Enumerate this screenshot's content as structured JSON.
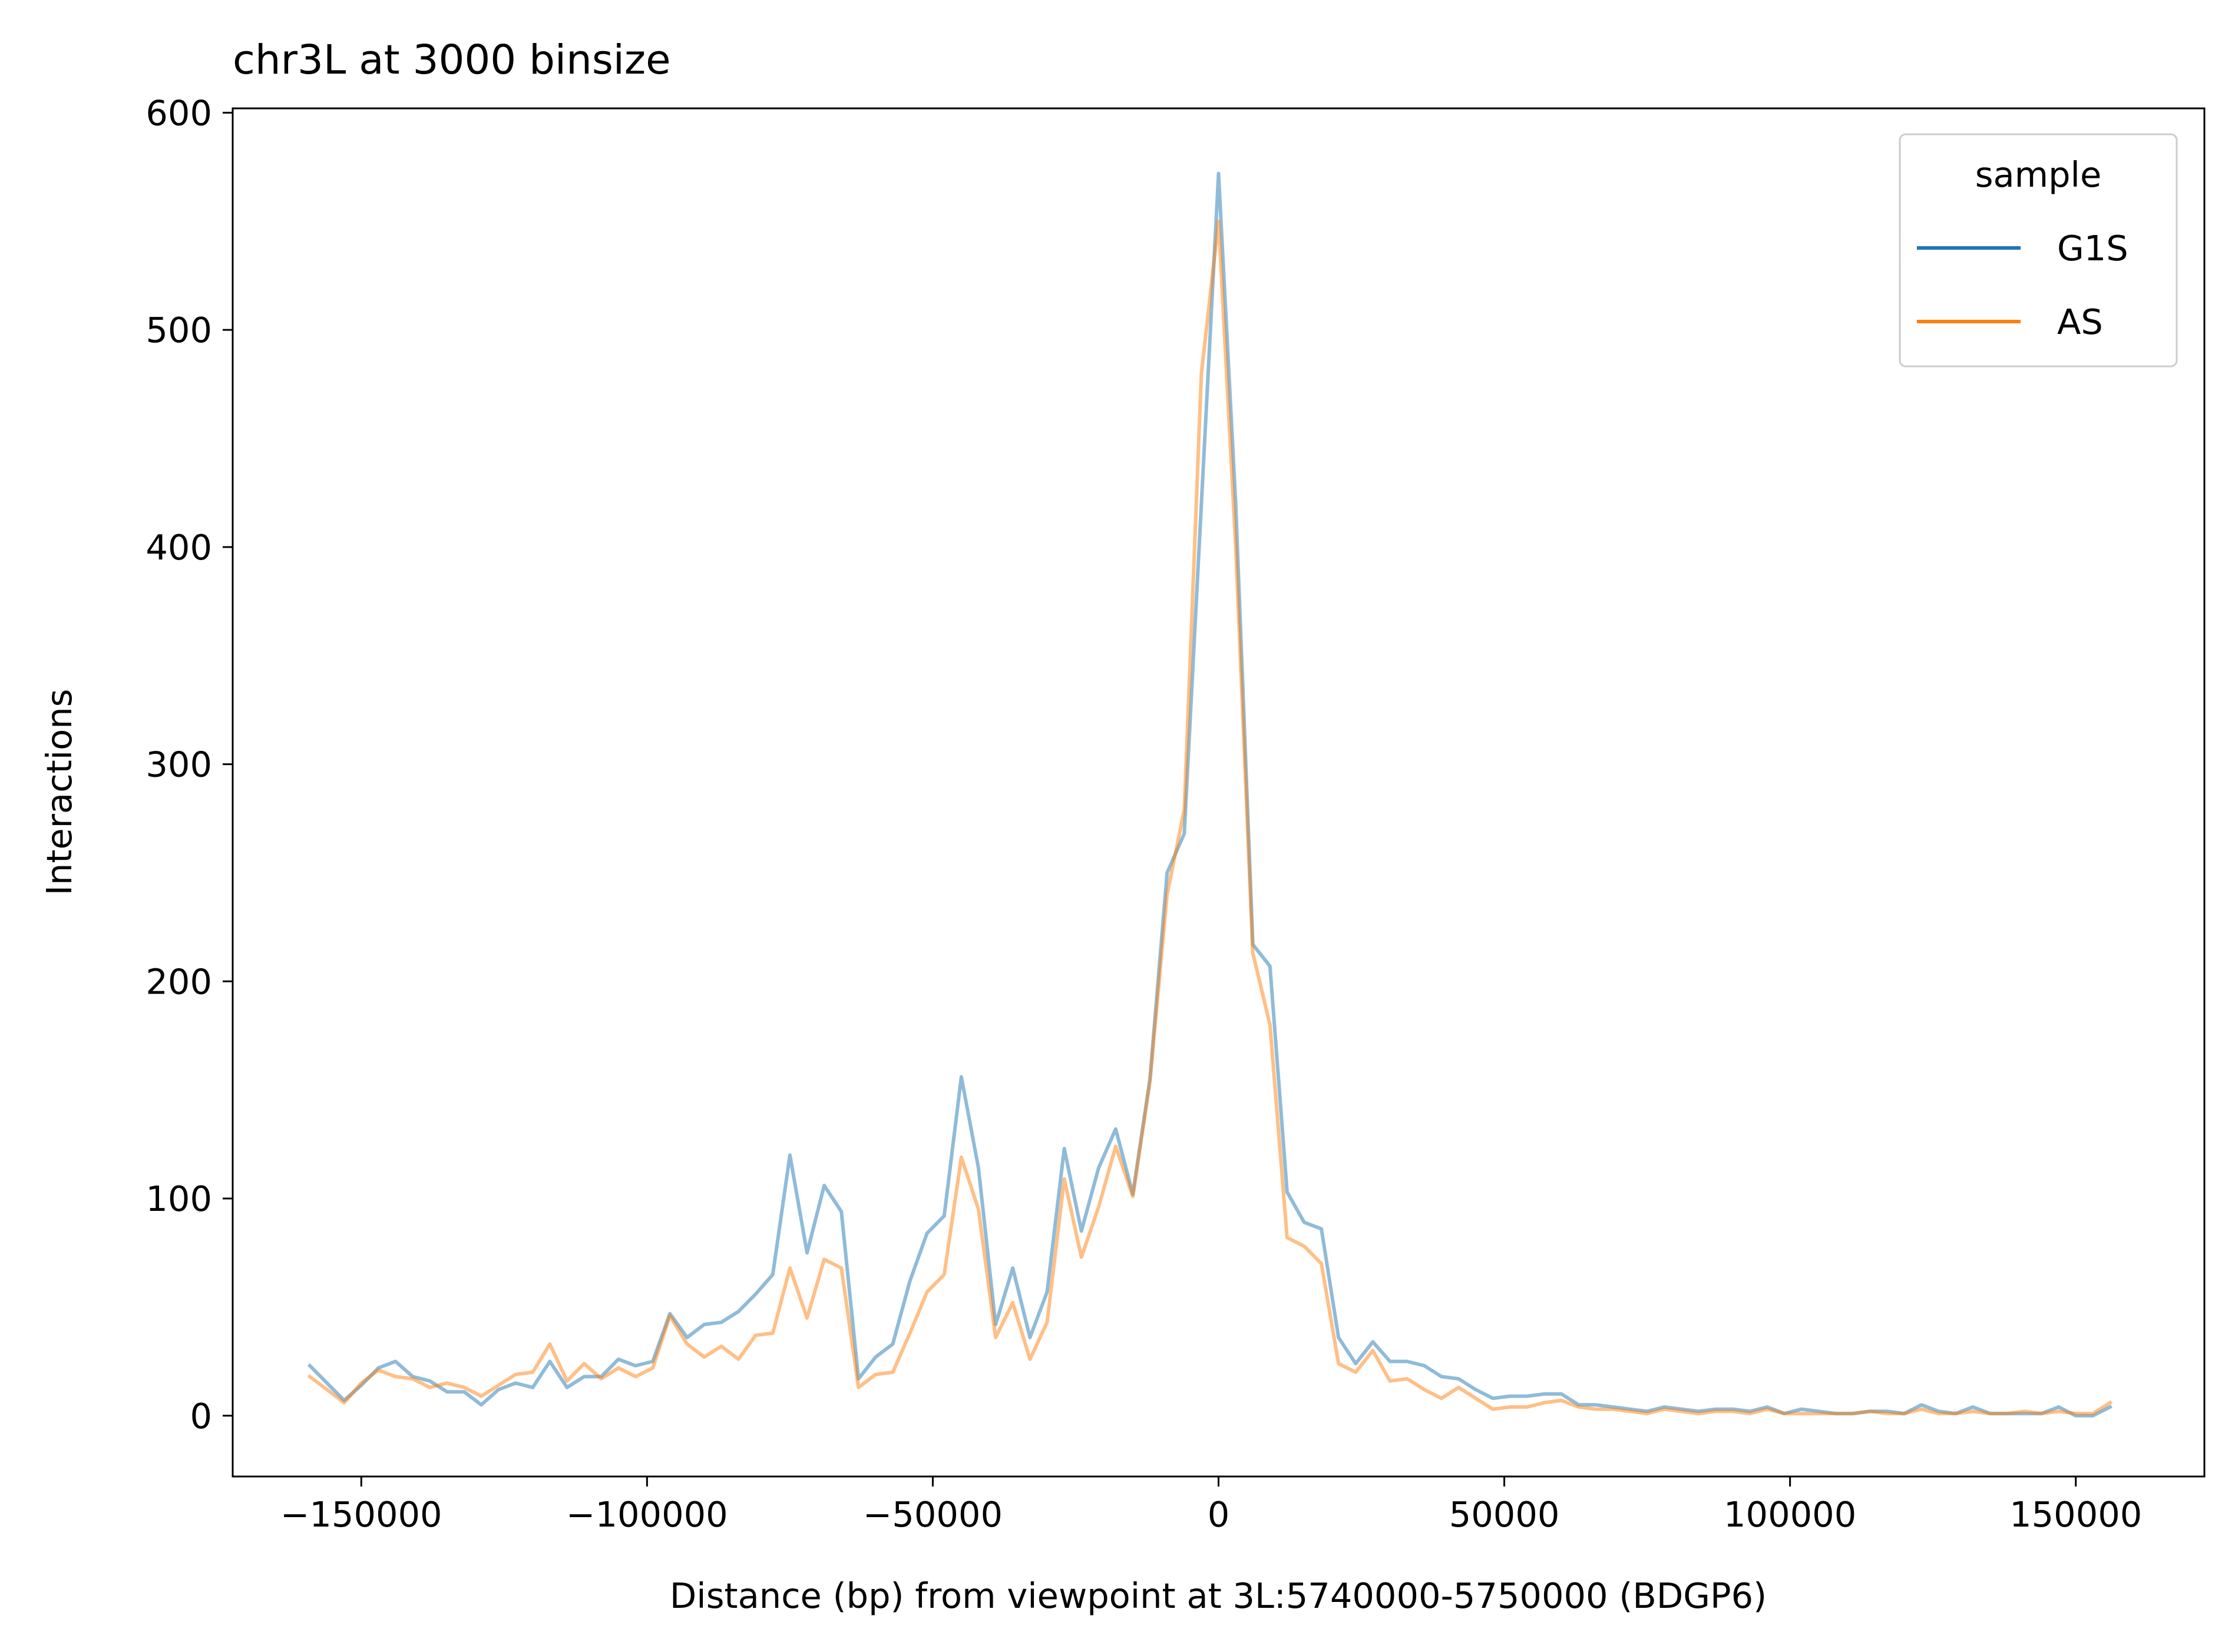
{
  "chart_data": {
    "type": "line",
    "title": "chr3L at 3000 binsize",
    "xlabel": "Distance (bp) from viewpoint at 3L:5740000-5750000 (BDGP6)",
    "ylabel": "Interactions",
    "xlim": [
      -172500,
      172500
    ],
    "ylim": [
      -28,
      602
    ],
    "xticks": [
      -150000,
      -100000,
      -50000,
      0,
      50000,
      100000,
      150000
    ],
    "xtick_labels": [
      "−150000",
      "−100000",
      "−50000",
      "0",
      "50000",
      "100000",
      "150000"
    ],
    "yticks": [
      0,
      100,
      200,
      300,
      400,
      500,
      600
    ],
    "ytick_labels": [
      "0",
      "100",
      "200",
      "300",
      "400",
      "500",
      "600"
    ],
    "grid": false,
    "legend": {
      "title": "sample",
      "placement": "top-right"
    },
    "x": [
      -159000,
      -156000,
      -153000,
      -150000,
      -147000,
      -144000,
      -141000,
      -138000,
      -135000,
      -132000,
      -129000,
      -126000,
      -123000,
      -120000,
      -117000,
      -114000,
      -111000,
      -108000,
      -105000,
      -102000,
      -99000,
      -96000,
      -93000,
      -90000,
      -87000,
      -84000,
      -81000,
      -78000,
      -75000,
      -72000,
      -69000,
      -66000,
      -63000,
      -60000,
      -57000,
      -54000,
      -51000,
      -48000,
      -45000,
      -42000,
      -39000,
      -36000,
      -33000,
      -30000,
      -27000,
      -24000,
      -21000,
      -18000,
      -15000,
      -12000,
      -9000,
      -6000,
      -3000,
      0,
      3000,
      6000,
      9000,
      12000,
      15000,
      18000,
      21000,
      24000,
      27000,
      30000,
      33000,
      36000,
      39000,
      42000,
      45000,
      48000,
      51000,
      54000,
      57000,
      60000,
      63000,
      66000,
      69000,
      72000,
      75000,
      78000,
      81000,
      84000,
      87000,
      90000,
      93000,
      96000,
      99000,
      102000,
      105000,
      108000,
      111000,
      114000,
      117000,
      120000,
      123000,
      126000,
      129000,
      132000,
      135000,
      138000,
      141000,
      144000,
      147000,
      150000,
      153000,
      156000
    ],
    "series": [
      {
        "name": "G1S",
        "color": "#1f77b4",
        "values": [
          23,
          15,
          7,
          14,
          22,
          25,
          18,
          16,
          11,
          11,
          5,
          12,
          15,
          13,
          25,
          13,
          18,
          18,
          26,
          23,
          25,
          47,
          36,
          42,
          43,
          48,
          56,
          65,
          120,
          75,
          106,
          94,
          17,
          27,
          33,
          62,
          84,
          92,
          156,
          114,
          42,
          68,
          36,
          57,
          123,
          85,
          114,
          132,
          102,
          155,
          250,
          268,
          420,
          572,
          420,
          217,
          207,
          103,
          89,
          86,
          36,
          24,
          34,
          25,
          25,
          23,
          18,
          17,
          12,
          8,
          9,
          9,
          10,
          10,
          5,
          5,
          4,
          3,
          2,
          4,
          3,
          2,
          3,
          3,
          2,
          4,
          1,
          3,
          2,
          1,
          1,
          2,
          2,
          1,
          5,
          2,
          1,
          4,
          1,
          1,
          1,
          1,
          4,
          0,
          0,
          4
        ]
      },
      {
        "name": "AS",
        "color": "#ff7f0e",
        "values": [
          18,
          12,
          6,
          15,
          21,
          18,
          17,
          13,
          15,
          13,
          9,
          14,
          19,
          20,
          33,
          16,
          24,
          17,
          22,
          18,
          22,
          46,
          33,
          27,
          32,
          26,
          37,
          38,
          68,
          45,
          72,
          68,
          13,
          19,
          20,
          38,
          57,
          65,
          119,
          95,
          36,
          52,
          26,
          43,
          109,
          73,
          96,
          124,
          101,
          154,
          240,
          279,
          480,
          550,
          400,
          213,
          180,
          82,
          78,
          70,
          24,
          20,
          30,
          16,
          17,
          12,
          8,
          13,
          8,
          3,
          4,
          4,
          6,
          7,
          4,
          3,
          3,
          2,
          1,
          3,
          2,
          1,
          2,
          2,
          1,
          3,
          1,
          1,
          1,
          1,
          1,
          2,
          1,
          1,
          3,
          1,
          1,
          2,
          1,
          1,
          2,
          1,
          2,
          1,
          1,
          6
        ]
      }
    ]
  }
}
